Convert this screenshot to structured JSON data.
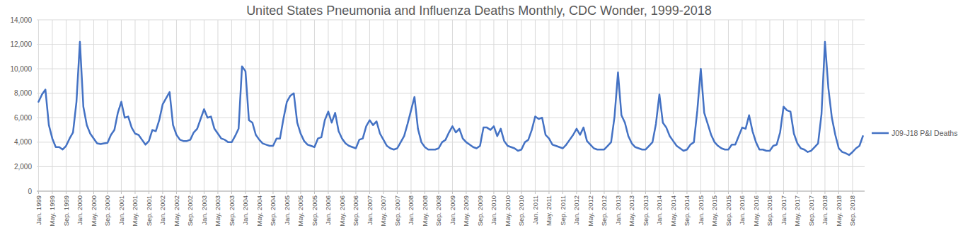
{
  "chart_data": {
    "type": "line",
    "title": "United States Pneumonia and Influenza Deaths Monthly, CDC Wonder, 1999-2018",
    "categories": [
      "Jan. 1999",
      null,
      null,
      null,
      "May. 1999",
      null,
      null,
      null,
      "Sep. 1999",
      null,
      null,
      null,
      "Jan. 2000",
      null,
      null,
      null,
      "May. 2000",
      null,
      null,
      null,
      "Sep. 2000",
      null,
      null,
      null,
      "Jan. 2001",
      null,
      null,
      null,
      "May. 2001",
      null,
      null,
      null,
      "Sep. 2001",
      null,
      null,
      null,
      "Jan. 2002",
      null,
      null,
      null,
      "May. 2002",
      null,
      null,
      null,
      "Sep. 2002",
      null,
      null,
      null,
      "Jan. 2003",
      null,
      null,
      null,
      "May. 2003",
      null,
      null,
      null,
      "Sep. 2003",
      null,
      null,
      null,
      "Jan. 2004",
      null,
      null,
      null,
      "May. 2004",
      null,
      null,
      null,
      "Sep. 2004",
      null,
      null,
      null,
      "Jan. 2005",
      null,
      null,
      null,
      "May. 2005",
      null,
      null,
      null,
      "Sep. 2005",
      null,
      null,
      null,
      "Jan. 2006",
      null,
      null,
      null,
      "May. 2006",
      null,
      null,
      null,
      "Sep. 2006",
      null,
      null,
      null,
      "Jan. 2007",
      null,
      null,
      null,
      "May. 2007",
      null,
      null,
      null,
      "Sep. 2007",
      null,
      null,
      null,
      "Jan. 2008",
      null,
      null,
      null,
      "May. 2008",
      null,
      null,
      null,
      "Sep. 2008",
      null,
      null,
      null,
      "Jan. 2009",
      null,
      null,
      null,
      "May. 2009",
      null,
      null,
      null,
      "Sep. 2009",
      null,
      null,
      null,
      "Jan. 2010",
      null,
      null,
      null,
      "May. 2010",
      null,
      null,
      null,
      "Sep. 2010",
      null,
      null,
      null,
      "Jan. 2011",
      null,
      null,
      null,
      "May. 2011",
      null,
      null,
      null,
      "Sep. 2011",
      null,
      null,
      null,
      "Jan. 2012",
      null,
      null,
      null,
      "May. 2012",
      null,
      null,
      null,
      "Sep. 2012",
      null,
      null,
      null,
      "Jan. 2013",
      null,
      null,
      null,
      "May. 2013",
      null,
      null,
      null,
      "Sep. 2013",
      null,
      null,
      null,
      "Jan. 2014",
      null,
      null,
      null,
      "May. 2014",
      null,
      null,
      null,
      "Sep. 2014",
      null,
      null,
      null,
      "Jan. 2015",
      null,
      null,
      null,
      "May. 2015",
      null,
      null,
      null,
      "Sep. 2015",
      null,
      null,
      null,
      "Jan. 2016",
      null,
      null,
      null,
      "May. 2016",
      null,
      null,
      null,
      "Sep. 2016",
      null,
      null,
      null,
      "Jan. 2017",
      null,
      null,
      null,
      "May. 2017",
      null,
      null,
      null,
      "Sep. 2017",
      null,
      null,
      null,
      "Jan. 2018",
      null,
      null,
      null,
      "May. 2018",
      null,
      null,
      null,
      "Sep. 2018",
      null,
      null,
      null
    ],
    "series": [
      {
        "name": "J09-J18 P&I Deaths",
        "color": "#4472c4",
        "values": [
          7300,
          7900,
          8300,
          5400,
          4300,
          3600,
          3600,
          3400,
          3700,
          4300,
          4800,
          7300,
          12200,
          6900,
          5400,
          4700,
          4300,
          3900,
          3850,
          3900,
          3950,
          4600,
          5000,
          6400,
          7300,
          6000,
          6100,
          5200,
          4700,
          4600,
          4200,
          3800,
          4100,
          5000,
          4900,
          5800,
          7100,
          7600,
          8100,
          5400,
          4600,
          4200,
          4100,
          4100,
          4200,
          4800,
          5100,
          5900,
          6700,
          6000,
          6100,
          5100,
          4700,
          4300,
          4200,
          4000,
          4000,
          4500,
          5100,
          10200,
          9800,
          5800,
          5600,
          4600,
          4200,
          3900,
          3800,
          3700,
          3700,
          4300,
          4300,
          5900,
          7300,
          7800,
          8000,
          5600,
          4700,
          4100,
          3800,
          3700,
          3600,
          4300,
          4400,
          5800,
          6500,
          5600,
          6400,
          4900,
          4300,
          3900,
          3700,
          3600,
          3500,
          4200,
          4300,
          5300,
          5800,
          5400,
          5700,
          4700,
          4200,
          3700,
          3500,
          3400,
          3500,
          4000,
          4500,
          5500,
          6600,
          7700,
          5100,
          4000,
          3600,
          3400,
          3400,
          3400,
          3500,
          4000,
          4200,
          4800,
          5300,
          4800,
          5100,
          4300,
          4000,
          3800,
          3600,
          3500,
          3700,
          5200,
          5200,
          5000,
          5300,
          4500,
          5100,
          4100,
          3700,
          3600,
          3500,
          3300,
          3400,
          4000,
          4200,
          5000,
          6100,
          5900,
          6000,
          4600,
          4300,
          3800,
          3700,
          3600,
          3500,
          3800,
          4200,
          4600,
          5100,
          4600,
          5200,
          4100,
          3800,
          3500,
          3400,
          3400,
          3400,
          3700,
          4000,
          6100,
          9700,
          6200,
          5600,
          4500,
          3900,
          3600,
          3500,
          3400,
          3400,
          3700,
          4000,
          5500,
          7900,
          5600,
          5200,
          4500,
          4100,
          3700,
          3500,
          3300,
          3400,
          3800,
          4000,
          6600,
          10000,
          6400,
          5500,
          4600,
          4000,
          3700,
          3500,
          3400,
          3400,
          3800,
          3800,
          4500,
          5200,
          5100,
          6200,
          4900,
          4000,
          3400,
          3400,
          3300,
          3300,
          3700,
          3800,
          4800,
          6900,
          6600,
          6500,
          4700,
          3900,
          3500,
          3400,
          3200,
          3300,
          3600,
          3900,
          6300,
          12200,
          8400,
          6000,
          4600,
          3500,
          3200,
          3100,
          2950,
          3200,
          3500,
          3700,
          4500
        ]
      }
    ],
    "ylim": [
      0,
      14000
    ],
    "yticks": [
      0,
      {
        "value": 2000,
        "label": "2,000"
      },
      {
        "value": 4000,
        "label": "4,000"
      },
      {
        "value": 6000,
        "label": "6,000"
      },
      {
        "value": 8000,
        "label": "8,000"
      },
      {
        "value": 10000,
        "label": "10,000"
      },
      {
        "value": 12000,
        "label": "12,000"
      },
      {
        "value": 14000,
        "label": "14,000"
      }
    ],
    "grid": true,
    "legend": "right"
  }
}
